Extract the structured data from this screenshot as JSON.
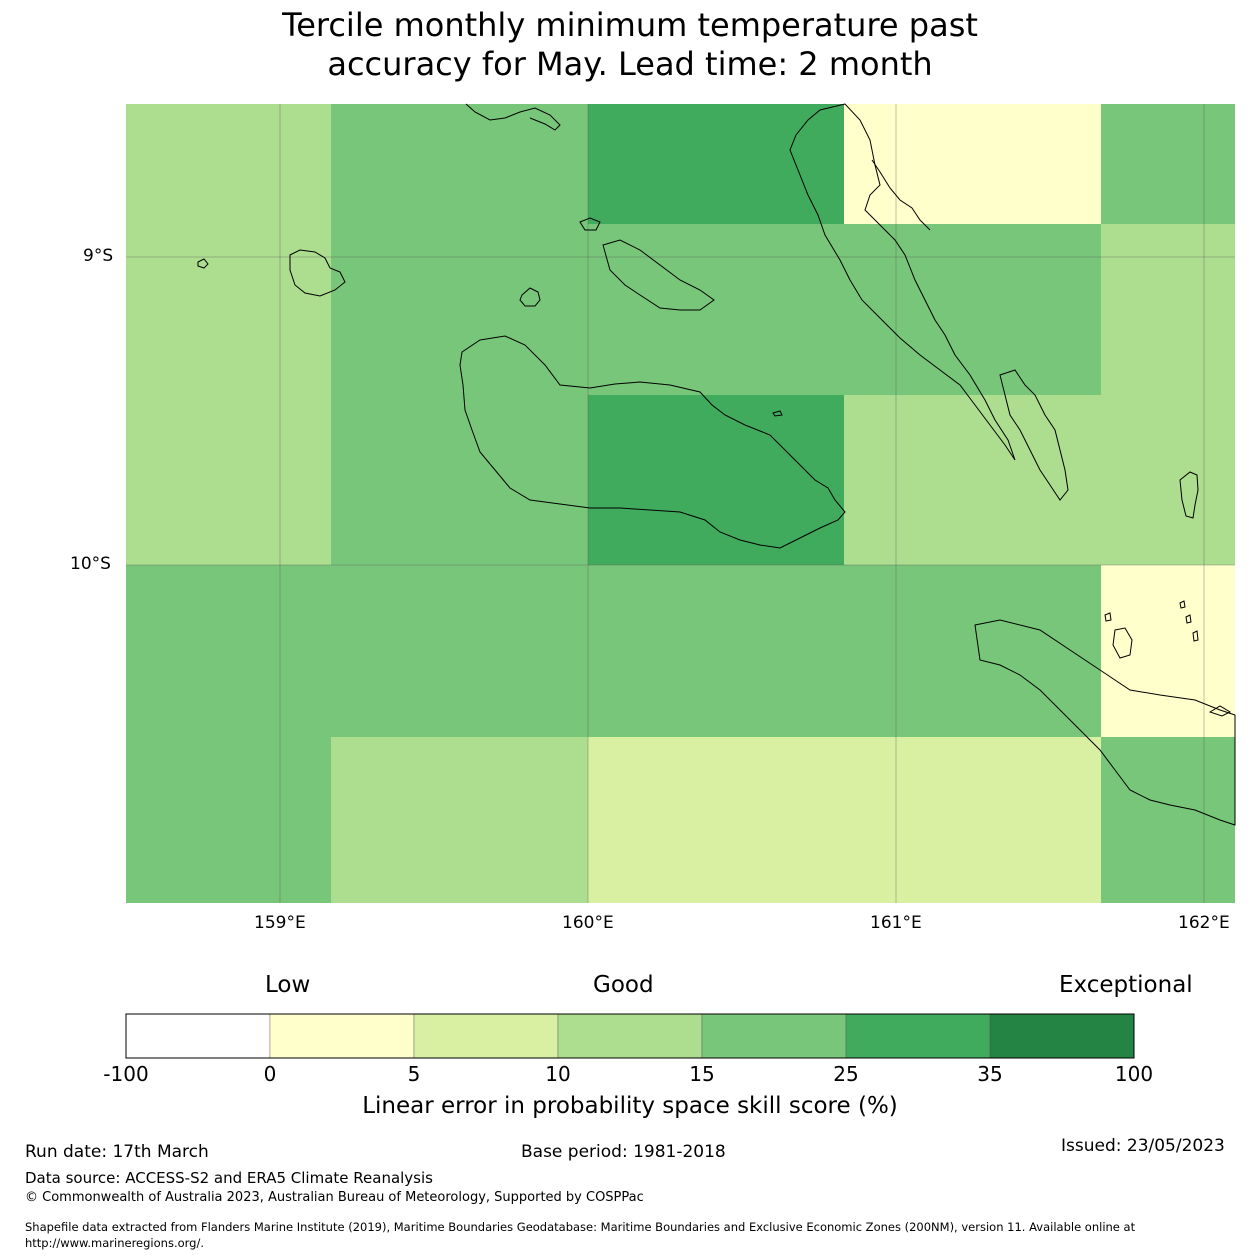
{
  "title_line1": "Tercile monthly minimum temperature past",
  "title_line2": "accuracy for May. Lead time: 2 month",
  "axis": {
    "lat_labels": [
      "9°S",
      "10°S"
    ],
    "lon_labels": [
      "159°E",
      "160°E",
      "161°E",
      "162°E"
    ]
  },
  "legend": {
    "categories": [
      "Low",
      "Good",
      "Exceptional"
    ],
    "ticks": [
      "-100",
      "0",
      "5",
      "10",
      "15",
      "25",
      "35",
      "100"
    ],
    "colors": [
      "#ffffff",
      "#ffffcc",
      "#d9f0a3",
      "#addd8e",
      "#78c679",
      "#41ab5d",
      "#238443"
    ],
    "label": "Linear error in probability space skill score (%)"
  },
  "grid_colors": [
    [
      "#addd8e",
      "#78c679",
      "#41ab5d",
      "#ffffcc",
      "#78c679"
    ],
    [
      "#addd8e",
      "#78c679",
      "#78c679",
      "#78c679",
      "#addd8e"
    ],
    [
      "#addd8e",
      "#78c679",
      "#41ab5d",
      "#addd8e",
      "#addd8e"
    ],
    [
      "#78c679",
      "#78c679",
      "#78c679",
      "#78c679",
      "#ffffcc"
    ],
    [
      "#78c679",
      "#addd8e",
      "#d9f0a3",
      "#d9f0a3",
      "#78c679"
    ]
  ],
  "footer": {
    "run_date": "Run date: 17th March",
    "base_period": "Base period: 1981-2018",
    "issued": "Issued: 23/05/2023",
    "data_source": "Data source: ACCESS-S2 and ERA5 Climate Reanalysis",
    "copyright": "© Commonwealth of Australia 2023, Australian Bureau of Meteorology, Supported by COSPPac",
    "shapefile_line1": "Shapefile data extracted from Flanders Marine Institute (2019), Maritime Boundaries Geodatabase: Maritime Boundaries and Exclusive Economic Zones (200NM), version 11. Available online at",
    "shapefile_line2": "http://www.marineregions.org/."
  }
}
